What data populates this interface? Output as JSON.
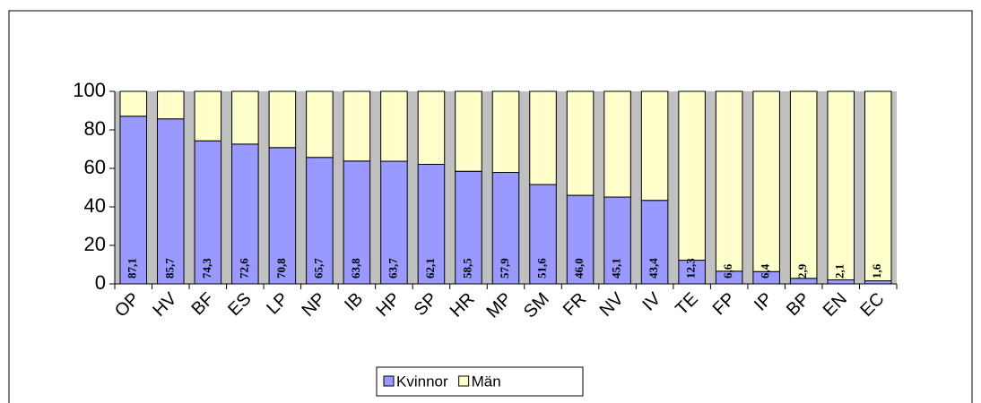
{
  "chart_data": {
    "type": "stacked_bar",
    "categories": [
      "OP",
      "HV",
      "BF",
      "ES",
      "LP",
      "NP",
      "IB",
      "HP",
      "SP",
      "HR",
      "MP",
      "SM",
      "FR",
      "NV",
      "IV",
      "TE",
      "FP",
      "IP",
      "BP",
      "EN",
      "EC"
    ],
    "series": [
      {
        "name": "Kvinnor",
        "color": "#9999ff",
        "values": [
          87.1,
          85.7,
          74.3,
          72.6,
          70.8,
          65.7,
          63.8,
          63.7,
          62.1,
          58.5,
          57.9,
          51.6,
          46.0,
          45.1,
          43.4,
          12.3,
          6.6,
          6.4,
          2.9,
          2.1,
          1.6
        ],
        "value_labels": [
          "87,1",
          "85,7",
          "74,3",
          "72,6",
          "70,8",
          "65,7",
          "63,8",
          "63,7",
          "62,1",
          "58,5",
          "57,9",
          "51,6",
          "46,0",
          "45,1",
          "43,4",
          "12,3",
          "6,6",
          "6,4",
          "2,9",
          "2,1",
          "1,6"
        ]
      },
      {
        "name": "Män",
        "color": "#ffffcc",
        "values": [
          12.9,
          14.3,
          25.7,
          27.4,
          29.2,
          34.3,
          36.2,
          36.3,
          37.9,
          41.5,
          42.1,
          48.4,
          54.0,
          54.9,
          56.6,
          87.7,
          93.4,
          93.6,
          97.1,
          97.9,
          98.4
        ]
      }
    ],
    "ylim": [
      0,
      100
    ],
    "yticks": [
      0,
      20,
      40,
      60,
      80,
      100
    ],
    "legend": "bottom"
  }
}
